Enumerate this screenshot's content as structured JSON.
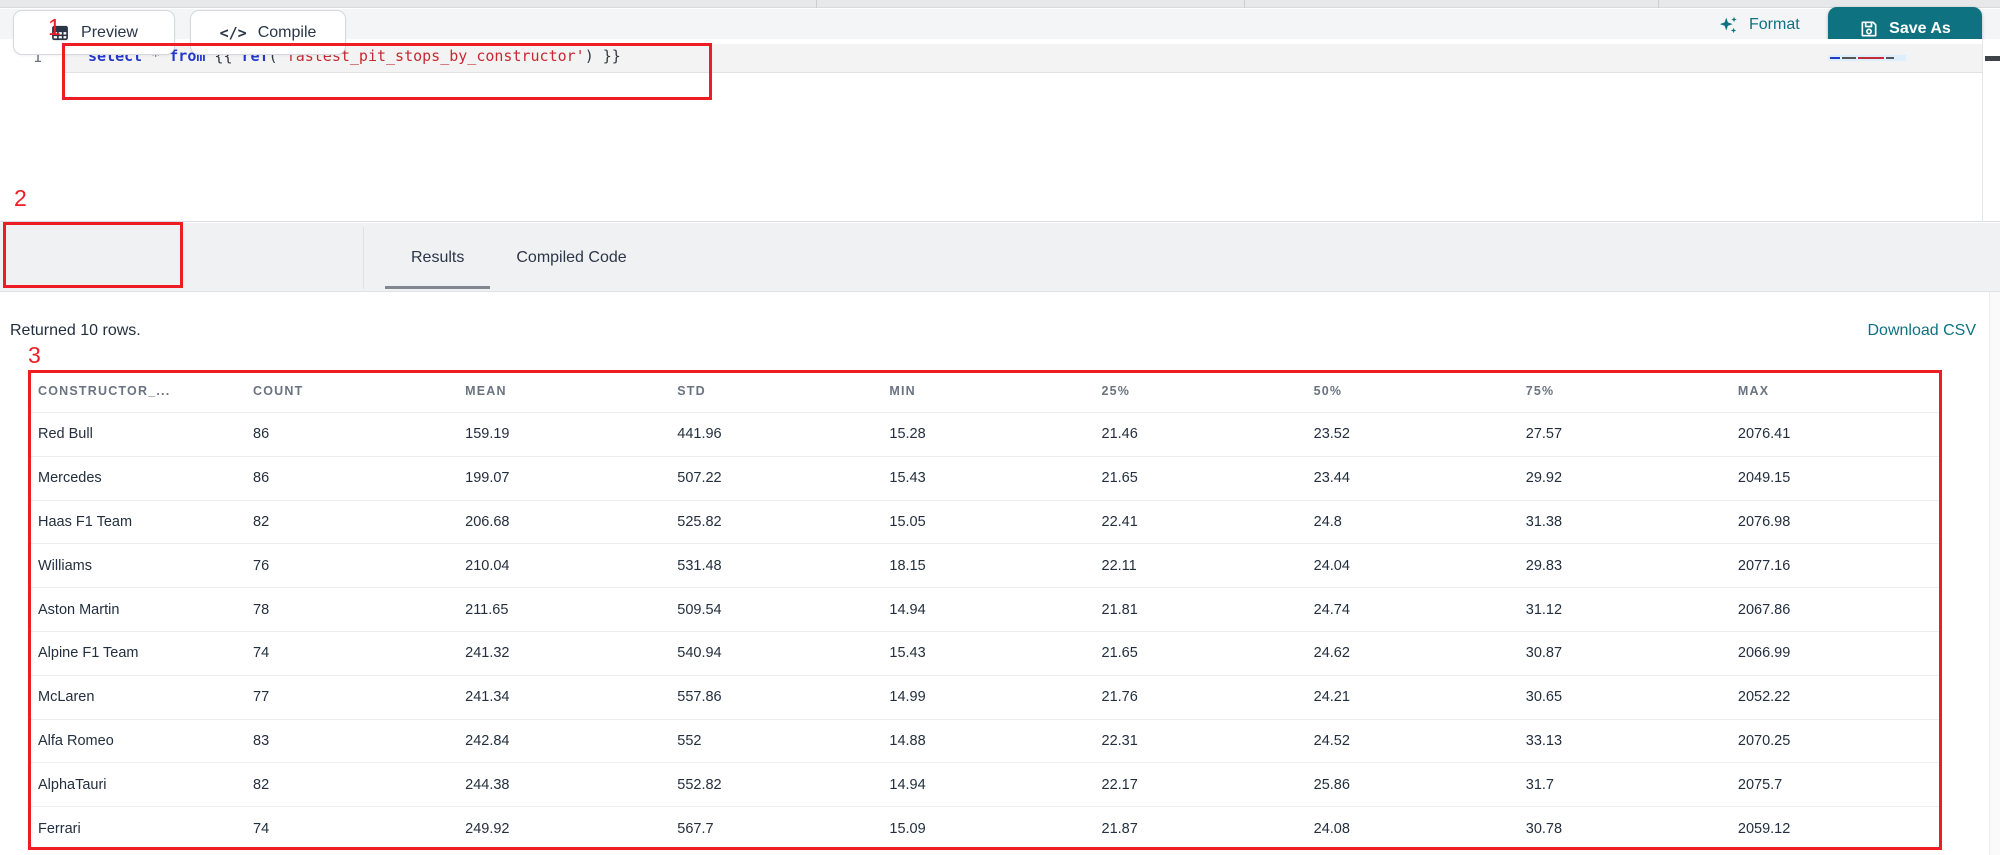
{
  "colors": {
    "teal": "#0f7280",
    "annotation_red": "#ee1d23",
    "keyword_blue": "#2438cc",
    "string_red": "#c62b33"
  },
  "annotations": {
    "one": "1",
    "two": "2",
    "three": "3"
  },
  "header": {
    "format_label": "Format",
    "save_as_label": "Save As"
  },
  "editor": {
    "line_number": "1",
    "code_text": "select * from {{ ref('fastest_pit_stops_by_constructor') }}",
    "tokens": [
      {
        "t": "select",
        "c": "kw"
      },
      {
        "t": " ",
        "c": "pl"
      },
      {
        "t": "*",
        "c": "op"
      },
      {
        "t": " ",
        "c": "pl"
      },
      {
        "t": "from",
        "c": "kw"
      },
      {
        "t": " {{ ",
        "c": "pl"
      },
      {
        "t": "ref",
        "c": "kw"
      },
      {
        "t": "(",
        "c": "pl"
      },
      {
        "t": "'fastest_pit_stops_by_constructor'",
        "c": "str"
      },
      {
        "t": ")",
        "c": "pl"
      },
      {
        "t": " }}",
        "c": "pl"
      }
    ]
  },
  "toolbar": {
    "preview_label": "Preview",
    "compile_label": "Compile",
    "compile_glyph": "</>",
    "tabs": [
      {
        "label": "Results",
        "active": true
      },
      {
        "label": "Compiled Code",
        "active": false
      }
    ]
  },
  "results": {
    "status": "Returned 10 rows.",
    "download_csv_label": "Download CSV",
    "table": {
      "columns": [
        "CONSTRUCTOR_...",
        "COUNT",
        "MEAN",
        "STD",
        "MIN",
        "25%",
        "50%",
        "75%",
        "MAX"
      ],
      "rows": [
        [
          "Red Bull",
          "86",
          "159.19",
          "441.96",
          "15.28",
          "21.46",
          "23.52",
          "27.57",
          "2076.41"
        ],
        [
          "Mercedes",
          "86",
          "199.07",
          "507.22",
          "15.43",
          "21.65",
          "23.44",
          "29.92",
          "2049.15"
        ],
        [
          "Haas F1 Team",
          "82",
          "206.68",
          "525.82",
          "15.05",
          "22.41",
          "24.8",
          "31.38",
          "2076.98"
        ],
        [
          "Williams",
          "76",
          "210.04",
          "531.48",
          "18.15",
          "22.11",
          "24.04",
          "29.83",
          "2077.16"
        ],
        [
          "Aston Martin",
          "78",
          "211.65",
          "509.54",
          "14.94",
          "21.81",
          "24.74",
          "31.12",
          "2067.86"
        ],
        [
          "Alpine F1 Team",
          "74",
          "241.32",
          "540.94",
          "15.43",
          "21.65",
          "24.62",
          "30.87",
          "2066.99"
        ],
        [
          "McLaren",
          "77",
          "241.34",
          "557.86",
          "14.99",
          "21.76",
          "24.21",
          "30.65",
          "2052.22"
        ],
        [
          "Alfa Romeo",
          "83",
          "242.84",
          "552",
          "14.88",
          "22.31",
          "24.52",
          "33.13",
          "2070.25"
        ],
        [
          "AlphaTauri",
          "82",
          "244.38",
          "552.82",
          "14.94",
          "22.17",
          "25.86",
          "31.7",
          "2075.7"
        ],
        [
          "Ferrari",
          "74",
          "249.92",
          "567.7",
          "15.09",
          "21.87",
          "24.08",
          "30.78",
          "2059.12"
        ]
      ]
    }
  }
}
